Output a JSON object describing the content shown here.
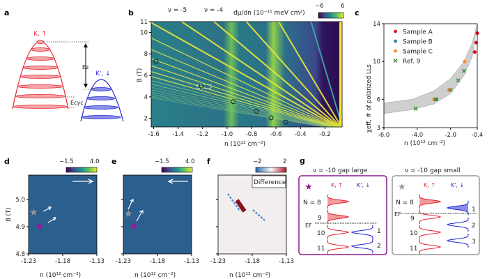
{
  "colors": {
    "red": "#e8222e",
    "blue": "#2226d6",
    "purple": "#8e1a8e",
    "gray": "#999999",
    "sampleA": "#e8112d",
    "sampleB": "#2e86ab",
    "sampleC": "#ff8a2a",
    "ref9": "#2e8b2e"
  },
  "panels": {
    "a": {
      "label": "a",
      "k_up": "K, ↑",
      "k_down": "K', ↓",
      "ez": "Ez",
      "ecyc": "Ecyc"
    },
    "b": {
      "label": "b",
      "nu5": "ν = -5",
      "nu4": "ν = -4",
      "cbar_title": "dμ/dn (10⁻¹¹ meV cm²)",
      "cbar_min": "−6",
      "cbar_max": "6",
      "ylabel": "B (T)",
      "xlabel": "n (10¹² cm⁻²)"
    },
    "c": {
      "label": "c",
      "ylabel": "χeff, # of polarized LLs",
      "xlabel": "n (10¹² cm⁻²)"
    },
    "d": {
      "label": "d",
      "cbar_min": "−1.5",
      "cbar_max": "4.0",
      "ylabel": "B (T)",
      "xlabel": "n (10¹² cm⁻²)"
    },
    "e": {
      "label": "e",
      "cbar_min": "−1.5",
      "cbar_max": "4.0",
      "xlabel": "n (10¹² cm⁻²)"
    },
    "f": {
      "label": "f",
      "cbar_min": "−2",
      "cbar_max": "2",
      "box": "Difference",
      "xlabel": "n (10¹² cm⁻²)"
    },
    "g": {
      "label": "g",
      "left_title": "ν = -10 gap large",
      "right_title": "ν = -10 gap small",
      "k_up": "K, ↑",
      "k_down": "K', ↓",
      "n8": "N = 8",
      "n9": "9",
      "n10": "10",
      "n11": "11",
      "ef": "EF",
      "b1": "1",
      "b2": "2",
      "b3": "3"
    }
  },
  "chart_data": [
    {
      "panel": "b",
      "type": "heatmap",
      "title": "dμ/dn (10⁻¹¹ meV cm²)",
      "xlabel": "n (10¹² cm⁻²)",
      "ylabel": "B (T)",
      "xlim": [
        -1.62,
        -0.06
      ],
      "ylim": [
        1.2,
        11
      ],
      "xticks": [
        "-1.6",
        "-1.4",
        "-1.2",
        "-1.0",
        "-0.8",
        "-0.6",
        "-0.4",
        "-0.2"
      ],
      "yticks": [
        "2",
        "4",
        "6",
        "8",
        "10",
        "11"
      ],
      "fan_nu": [
        -1,
        -2,
        -3,
        -4,
        -5,
        -6,
        -7,
        -8,
        -9,
        -10,
        -11,
        -12,
        -13,
        -14,
        -15,
        -16,
        -17,
        -18,
        -19,
        -20
      ],
      "circles": [
        {
          "n": -1.58,
          "B": 7.3
        },
        {
          "n": -1.21,
          "B": 5.0
        },
        {
          "n": -0.95,
          "B": 3.55
        },
        {
          "n": -0.76,
          "B": 2.65
        },
        {
          "n": -0.64,
          "B": 2.05
        },
        {
          "n": -0.52,
          "B": 1.65
        }
      ]
    },
    {
      "panel": "c",
      "type": "scatter",
      "xlabel": "n (10¹² cm⁻²)",
      "ylabel": "χeff, # of polarized LLs",
      "xlim": [
        -6.0,
        -0.4
      ],
      "ylim": [
        3,
        14
      ],
      "xticks": [
        "-6.0",
        "-4.0",
        "-2.0",
        "-0.4"
      ],
      "yticks": [
        "3",
        "6",
        "10",
        "14"
      ],
      "legend": "top-left",
      "series": [
        {
          "name": "Sample A",
          "marker": "dot",
          "points": [
            [
              -0.55,
              11
            ],
            [
              -0.47,
              12
            ],
            [
              -0.4,
              13
            ]
          ]
        },
        {
          "name": "Sample B",
          "marker": "dot",
          "points": [
            [
              -2.85,
              6
            ]
          ]
        },
        {
          "name": "Sample C",
          "marker": "dot",
          "points": [
            [
              -3.0,
              6
            ],
            [
              -2.1,
              7
            ],
            [
              -1.15,
              10
            ]
          ]
        },
        {
          "name": "Ref. 9",
          "marker": "x",
          "points": [
            [
              -4.1,
              5
            ],
            [
              -2.9,
              6
            ],
            [
              -2.0,
              7
            ],
            [
              -1.55,
              8
            ],
            [
              -1.2,
              9
            ]
          ]
        }
      ],
      "band": {
        "upper": [
          [
            -6,
            5.6
          ],
          [
            -4.3,
            6.0
          ],
          [
            -3,
            6.9
          ],
          [
            -2,
            8.2
          ],
          [
            -1.2,
            10
          ],
          [
            -0.7,
            12
          ],
          [
            -0.4,
            14
          ]
        ],
        "lower": [
          [
            -6,
            4.5
          ],
          [
            -4.3,
            4.9
          ],
          [
            -3,
            5.5
          ],
          [
            -2,
            6.6
          ],
          [
            -1.2,
            8.5
          ],
          [
            -0.7,
            10.5
          ],
          [
            -0.45,
            13.5
          ]
        ]
      }
    },
    {
      "panel": "d",
      "type": "heatmap",
      "xlim": [
        -1.23,
        -1.13
      ],
      "ylim": [
        4.8,
        5.09
      ],
      "xticks": [
        "-1.23",
        "-1.18",
        "-1.13"
      ],
      "yticks": [
        "4.8",
        "4.9",
        "5.0"
      ],
      "sweep": "right"
    },
    {
      "panel": "e",
      "type": "heatmap",
      "xlim": [
        -1.23,
        -1.13
      ],
      "ylim": [
        4.8,
        5.09
      ],
      "xticks": [
        "-1.23",
        "-1.18",
        "-1.13"
      ],
      "sweep": "left"
    },
    {
      "panel": "f",
      "type": "heatmap",
      "xlim": [
        -1.23,
        -1.13
      ],
      "ylim": [
        4.8,
        5.09
      ],
      "xticks": [
        "-1.23",
        "-1.18",
        "-1.13"
      ]
    }
  ]
}
